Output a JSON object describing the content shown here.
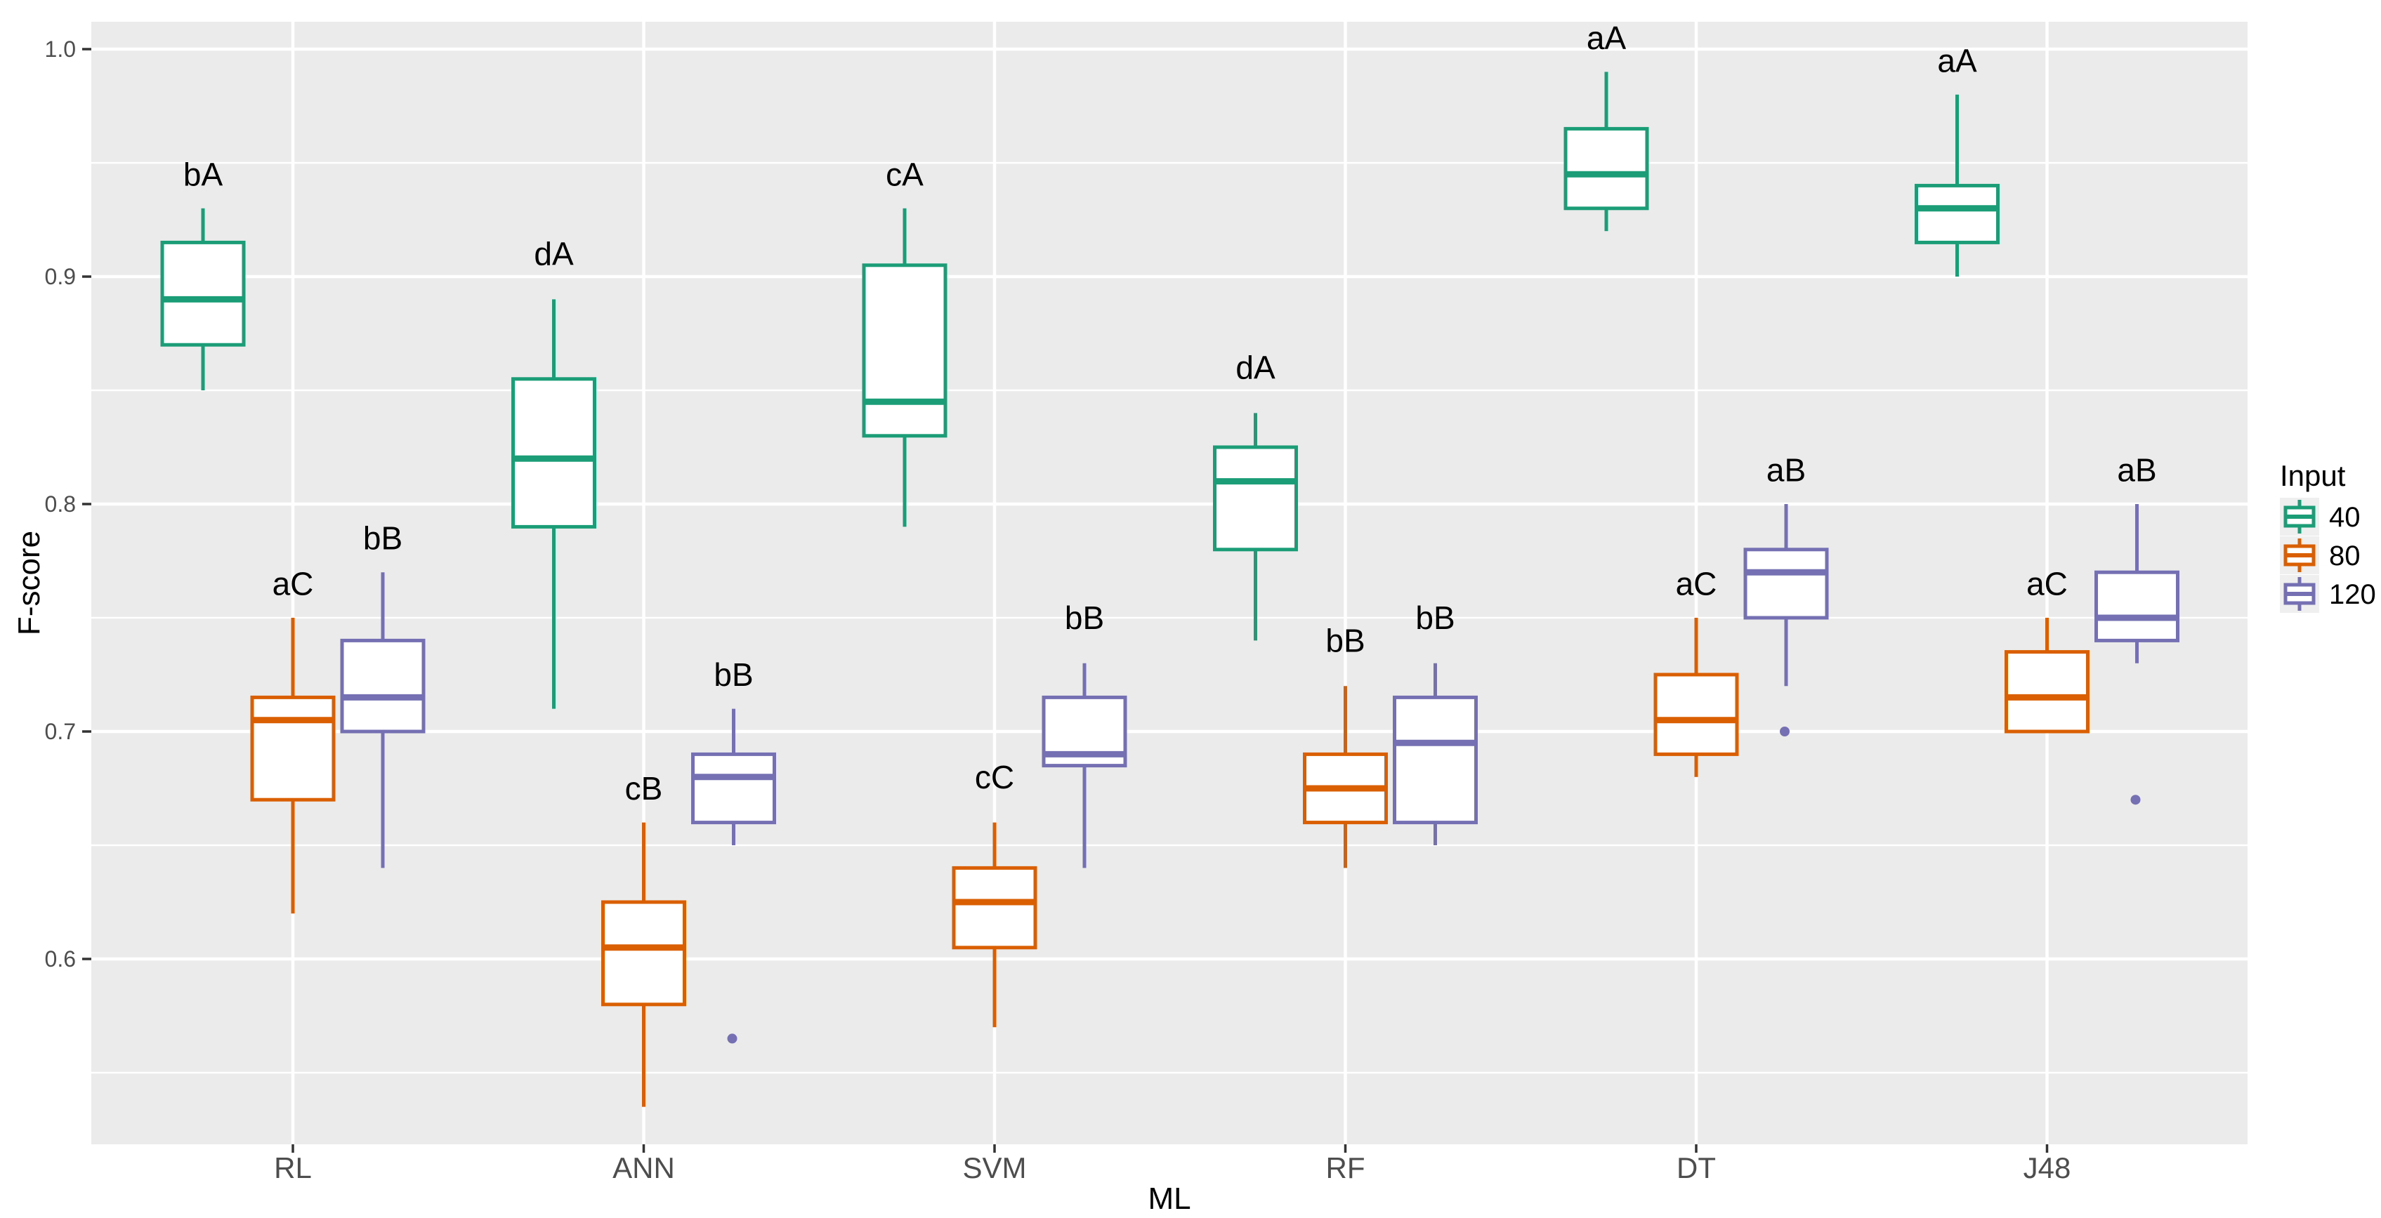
{
  "figure": {
    "background": "#FFFFFF",
    "panel_background": "#EBEBEB",
    "grid_color": "#FFFFFF",
    "tick_mark_color": "#333333",
    "tick_label_color": "#4D4D4D",
    "title_color": "#000000",
    "annotation_color": "#000000",
    "legend_key_background": "#EFEFEF"
  },
  "chart_data": {
    "type": "boxplot",
    "title": "",
    "xlabel": "ML",
    "ylabel": "F-score",
    "categories": [
      "RL",
      "ANN",
      "SVM",
      "RF",
      "DT",
      "J48"
    ],
    "y_axis": {
      "ticks": [
        1.0,
        0.9,
        0.8,
        0.7,
        0.6
      ],
      "tick_labels": [
        "1.0",
        "0.9",
        "0.8",
        "0.7",
        "0.6"
      ],
      "minor_ticks": [
        0.95,
        0.85,
        0.75,
        0.65,
        0.55
      ],
      "ylim": [
        0.5185,
        1.012
      ],
      "grid": true
    },
    "legend": {
      "title": "Input",
      "position": "right",
      "entries": [
        {
          "label": "40",
          "color": "#1B9E77"
        },
        {
          "label": "80",
          "color": "#D95F02"
        },
        {
          "label": "120",
          "color": "#7570B3"
        }
      ]
    },
    "series": [
      {
        "name": "40",
        "color": "#1B9E77",
        "boxes": [
          {
            "category": "RL",
            "low": 0.85,
            "q1": 0.87,
            "median": 0.89,
            "q3": 0.915,
            "high": 0.93,
            "outliers": [],
            "annotation": "bA",
            "annotation_y": 0.945
          },
          {
            "category": "ANN",
            "low": 0.71,
            "q1": 0.79,
            "median": 0.82,
            "q3": 0.855,
            "high": 0.89,
            "outliers": [],
            "annotation": "dA",
            "annotation_y": 0.91
          },
          {
            "category": "SVM",
            "low": 0.79,
            "q1": 0.83,
            "median": 0.845,
            "q3": 0.905,
            "high": 0.93,
            "outliers": [],
            "annotation": "cA",
            "annotation_y": 0.945
          },
          {
            "category": "RF",
            "low": 0.74,
            "q1": 0.78,
            "median": 0.81,
            "q3": 0.825,
            "high": 0.84,
            "outliers": [],
            "annotation": "dA",
            "annotation_y": 0.86
          },
          {
            "category": "DT",
            "low": 0.92,
            "q1": 0.93,
            "median": 0.945,
            "q3": 0.965,
            "high": 0.99,
            "outliers": [],
            "annotation": "aA",
            "annotation_y": 1.005
          },
          {
            "category": "J48",
            "low": 0.9,
            "q1": 0.915,
            "median": 0.93,
            "q3": 0.94,
            "high": 0.98,
            "outliers": [],
            "annotation": "aA",
            "annotation_y": 0.995
          }
        ]
      },
      {
        "name": "80",
        "color": "#D95F02",
        "boxes": [
          {
            "category": "RL",
            "low": 0.62,
            "q1": 0.67,
            "median": 0.705,
            "q3": 0.715,
            "high": 0.75,
            "outliers": [],
            "annotation": "aC",
            "annotation_y": 0.765
          },
          {
            "category": "ANN",
            "low": 0.535,
            "q1": 0.58,
            "median": 0.605,
            "q3": 0.625,
            "high": 0.66,
            "outliers": [],
            "annotation": "cB",
            "annotation_y": 0.675
          },
          {
            "category": "SVM",
            "low": 0.57,
            "q1": 0.605,
            "median": 0.625,
            "q3": 0.64,
            "high": 0.66,
            "outliers": [],
            "annotation": "cC",
            "annotation_y": 0.68
          },
          {
            "category": "RF",
            "low": 0.64,
            "q1": 0.66,
            "median": 0.675,
            "q3": 0.69,
            "high": 0.72,
            "outliers": [],
            "annotation": "bB",
            "annotation_y": 0.74
          },
          {
            "category": "DT",
            "low": 0.68,
            "q1": 0.69,
            "median": 0.705,
            "q3": 0.725,
            "high": 0.75,
            "outliers": [],
            "annotation": "aC",
            "annotation_y": 0.765
          },
          {
            "category": "J48",
            "low": 0.7,
            "q1": 0.7,
            "median": 0.715,
            "q3": 0.735,
            "high": 0.75,
            "outliers": [],
            "annotation": "aC",
            "annotation_y": 0.765
          }
        ]
      },
      {
        "name": "120",
        "color": "#7570B3",
        "boxes": [
          {
            "category": "RL",
            "low": 0.64,
            "q1": 0.7,
            "median": 0.715,
            "q3": 0.74,
            "high": 0.77,
            "outliers": [],
            "annotation": "bB",
            "annotation_y": 0.785
          },
          {
            "category": "ANN",
            "low": 0.65,
            "q1": 0.66,
            "median": 0.68,
            "q3": 0.69,
            "high": 0.71,
            "outliers": [
              0.565
            ],
            "annotation": "bB",
            "annotation_y": 0.725
          },
          {
            "category": "SVM",
            "low": 0.64,
            "q1": 0.685,
            "median": 0.69,
            "q3": 0.715,
            "high": 0.73,
            "outliers": [],
            "annotation": "bB",
            "annotation_y": 0.75
          },
          {
            "category": "RF",
            "low": 0.65,
            "q1": 0.66,
            "median": 0.695,
            "q3": 0.715,
            "high": 0.73,
            "outliers": [],
            "annotation": "bB",
            "annotation_y": 0.75
          },
          {
            "category": "DT",
            "low": 0.72,
            "q1": 0.75,
            "median": 0.77,
            "q3": 0.78,
            "high": 0.8,
            "outliers": [
              0.7
            ],
            "annotation": "aB",
            "annotation_y": 0.815
          },
          {
            "category": "J48",
            "low": 0.73,
            "q1": 0.74,
            "median": 0.75,
            "q3": 0.77,
            "high": 0.8,
            "outliers": [
              0.67
            ],
            "annotation": "aB",
            "annotation_y": 0.815
          }
        ]
      }
    ]
  }
}
